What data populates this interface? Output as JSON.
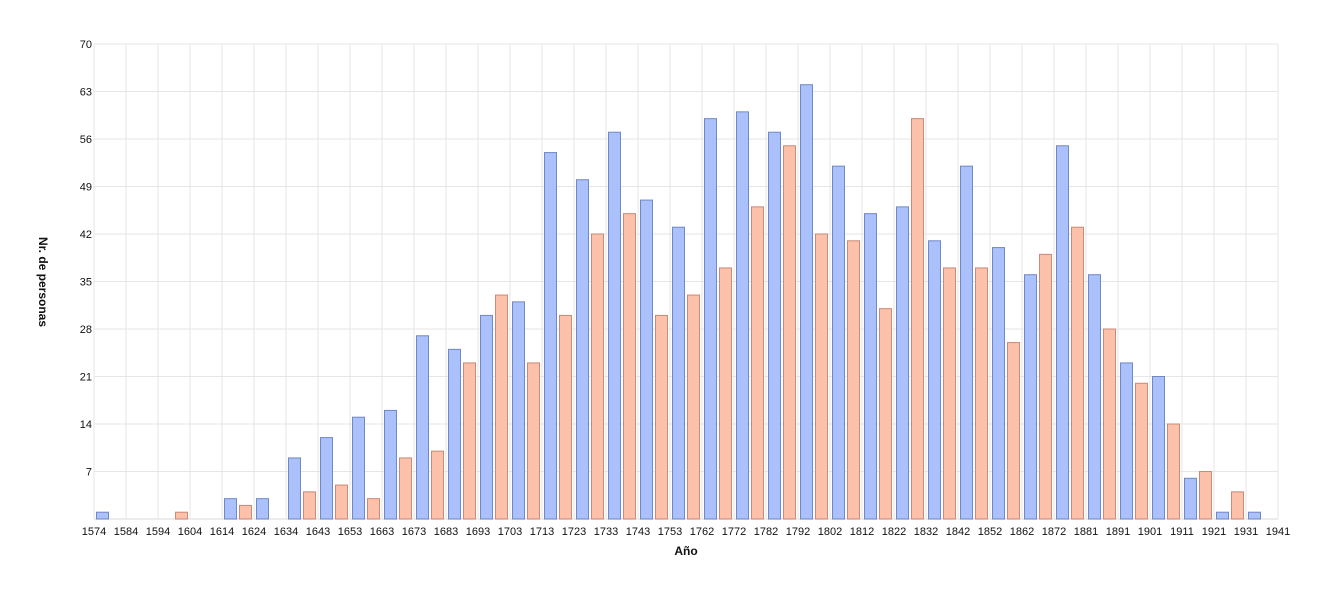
{
  "chart_data": {
    "type": "bar",
    "xlabel": "Año",
    "ylabel": "Nr. de personas",
    "ylim": [
      0,
      70
    ],
    "yticks": [
      7,
      14,
      21,
      28,
      35,
      42,
      49,
      56,
      63,
      70
    ],
    "grid": true,
    "bin_edges": [
      "1574",
      "1584",
      "1594",
      "1604",
      "1614",
      "1624",
      "1634",
      "1643",
      "1653",
      "1663",
      "1673",
      "1683",
      "1693",
      "1703",
      "1713",
      "1723",
      "1733",
      "1743",
      "1753",
      "1762",
      "1772",
      "1782",
      "1792",
      "1802",
      "1812",
      "1822",
      "1832",
      "1842",
      "1852",
      "1862",
      "1872",
      "1881",
      "1891",
      "1901",
      "1911",
      "1921",
      "1931",
      "1941"
    ],
    "series": [
      {
        "color": "#aac1fb",
        "stroke": "#7088c4",
        "values": [
          1,
          0,
          0,
          0,
          3,
          3,
          9,
          12,
          15,
          16,
          27,
          25,
          30,
          32,
          54,
          50,
          57,
          47,
          43,
          59,
          60,
          57,
          64,
          52,
          45,
          46,
          41,
          52,
          40,
          36,
          55,
          36,
          23,
          21,
          6,
          1,
          1
        ]
      },
      {
        "color": "#fdc0a8",
        "stroke": "#c98a76",
        "values": [
          0,
          0,
          1,
          0,
          2,
          0,
          4,
          5,
          3,
          9,
          10,
          23,
          33,
          23,
          30,
          42,
          45,
          30,
          33,
          37,
          46,
          55,
          42,
          41,
          31,
          59,
          37,
          37,
          26,
          39,
          43,
          28,
          20,
          14,
          7,
          4,
          0
        ]
      }
    ]
  }
}
